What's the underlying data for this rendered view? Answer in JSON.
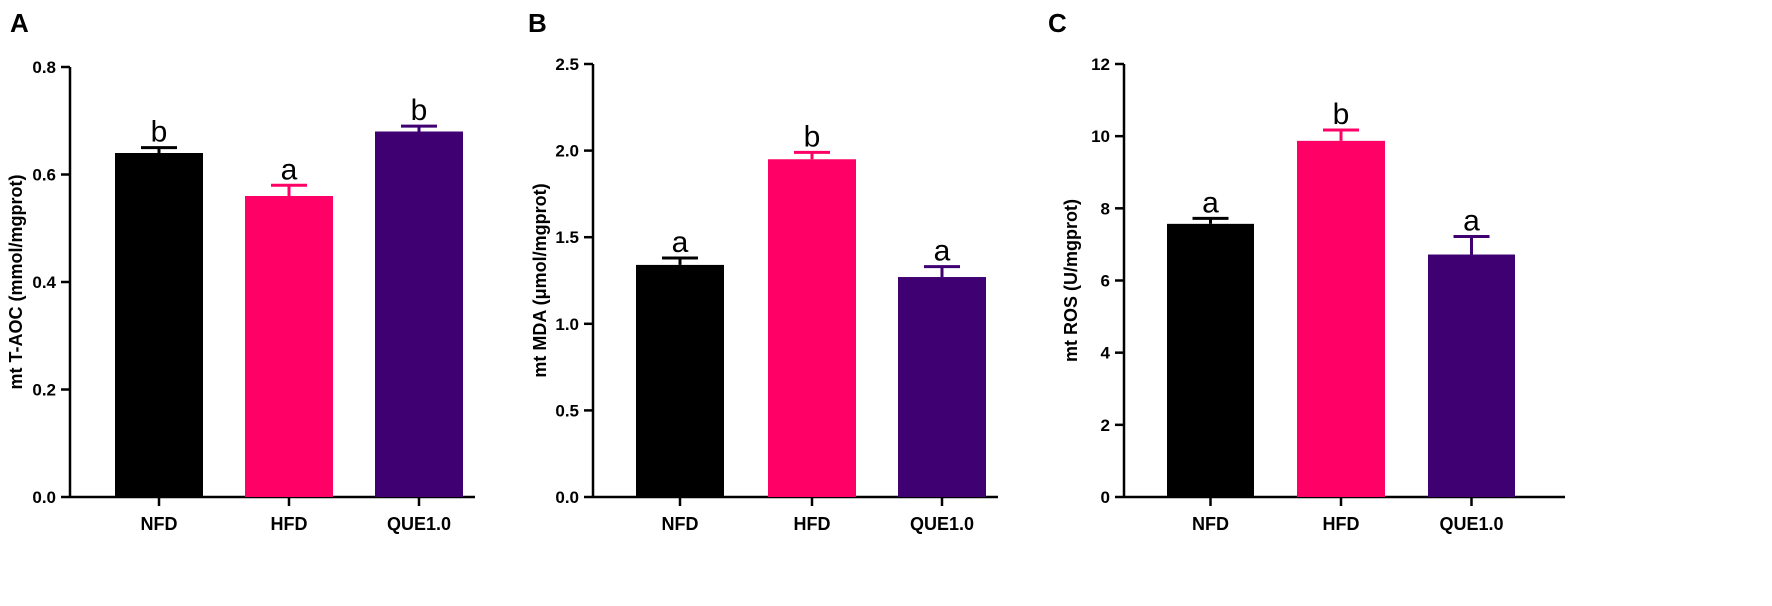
{
  "chart_data": [
    {
      "type": "bar",
      "panel": "A",
      "ylabel": "mt T-AOC (mmol/mgprot)",
      "ylim": [
        0,
        0.8
      ],
      "yticks": [
        0.0,
        0.2,
        0.4,
        0.6,
        0.8
      ],
      "ytick_labels": [
        "0.0",
        "0.2",
        "0.4",
        "0.6",
        "0.8"
      ],
      "categories": [
        "NFD",
        "HFD",
        "QUE1.0"
      ],
      "values": [
        0.64,
        0.56,
        0.68
      ],
      "errors": [
        0.01,
        0.02,
        0.01
      ],
      "significance": [
        "b",
        "a",
        "b"
      ],
      "colors": [
        "#000000",
        "#ff0066",
        "#3f0071"
      ]
    },
    {
      "type": "bar",
      "panel": "B",
      "ylabel": "mt MDA (μmol/mgprot)",
      "ylim": [
        0,
        2.5
      ],
      "yticks": [
        0.0,
        0.5,
        1.0,
        1.5,
        2.0,
        2.5
      ],
      "ytick_labels": [
        "0.0",
        "0.5",
        "1.0",
        "1.5",
        "2.0",
        "2.5"
      ],
      "categories": [
        "NFD",
        "HFD",
        "QUE1.0"
      ],
      "values": [
        1.34,
        1.95,
        1.27
      ],
      "errors": [
        0.04,
        0.04,
        0.06
      ],
      "significance": [
        "a",
        "b",
        "a"
      ],
      "colors": [
        "#000000",
        "#ff0066",
        "#3f0071"
      ]
    },
    {
      "type": "bar",
      "panel": "C",
      "ylabel": "mt ROS (U/mgprot)",
      "ylim": [
        0,
        12
      ],
      "yticks": [
        0,
        2,
        4,
        6,
        8,
        10,
        12
      ],
      "ytick_labels": [
        "0",
        "2",
        "4",
        "6",
        "8",
        "10",
        "12"
      ],
      "categories": [
        "NFD",
        "HFD",
        "QUE1.0"
      ],
      "values": [
        7.57,
        9.87,
        6.72
      ],
      "errors": [
        0.15,
        0.3,
        0.5
      ],
      "significance": [
        "a",
        "b",
        "a"
      ],
      "colors": [
        "#000000",
        "#ff0066",
        "#3f0071"
      ]
    }
  ]
}
